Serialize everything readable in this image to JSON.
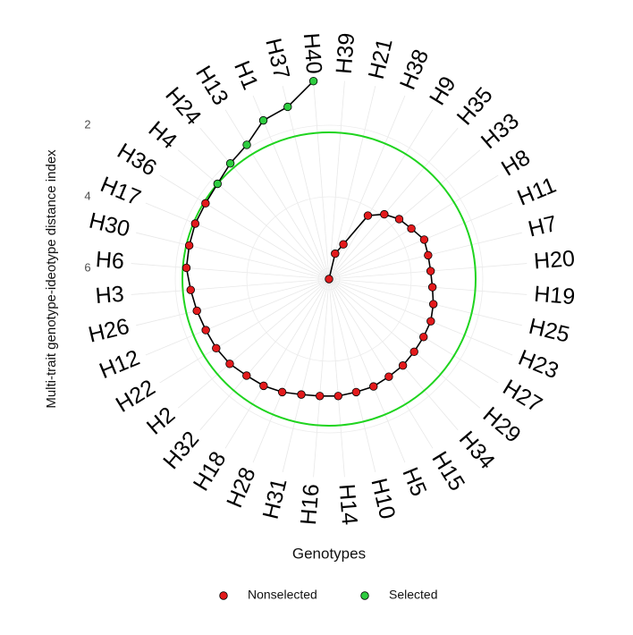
{
  "chart_data": {
    "type": "polar-line",
    "x_label": "Genotypes",
    "y_label": "Multi-trait genotype-ideotype distance index",
    "categories": [
      "H39",
      "H21",
      "H38",
      "H9",
      "H35",
      "H33",
      "H8",
      "H11",
      "H7",
      "H20",
      "H19",
      "H25",
      "H23",
      "H27",
      "H29",
      "H34",
      "H15",
      "H5",
      "H10",
      "H14",
      "H16",
      "H31",
      "H28",
      "H18",
      "H32",
      "H2",
      "H22",
      "H12",
      "H26",
      "H3",
      "H6",
      "H30",
      "H17",
      "H36",
      "H4",
      "H24",
      "H13",
      "H1",
      "H37",
      "H40"
    ],
    "values": [
      6.3,
      5.57,
      5.25,
      4.22,
      3.92,
      3.72,
      3.6,
      3.42,
      3.45,
      3.45,
      3.4,
      3.3,
      3.22,
      3.2,
      3.17,
      3.12,
      3.1,
      3.05,
      3.05,
      3.02,
      3.02,
      2.98,
      2.88,
      2.8,
      2.75,
      2.65,
      2.6,
      2.57,
      2.5,
      2.42,
      2.3,
      2.28,
      2.25,
      2.25,
      2.2,
      2.05,
      1.9,
      1.5,
      1.35,
      0.75
    ],
    "selected": [
      false,
      false,
      false,
      false,
      false,
      false,
      false,
      false,
      false,
      false,
      false,
      false,
      false,
      false,
      false,
      false,
      false,
      false,
      false,
      false,
      false,
      false,
      false,
      false,
      false,
      false,
      false,
      false,
      false,
      false,
      false,
      false,
      false,
      false,
      true,
      true,
      true,
      true,
      true,
      true
    ],
    "legend": [
      {
        "name": "Nonselected",
        "color": "#e31a1c"
      },
      {
        "name": "Selected",
        "color": "#2ecc40"
      }
    ],
    "threshold": 2.2,
    "threshold_color": "#1fd41f",
    "line_color": "#000000",
    "ylim": [
      6.3,
      0.75
    ],
    "yticks": [
      2,
      4,
      6
    ],
    "grid": true
  }
}
